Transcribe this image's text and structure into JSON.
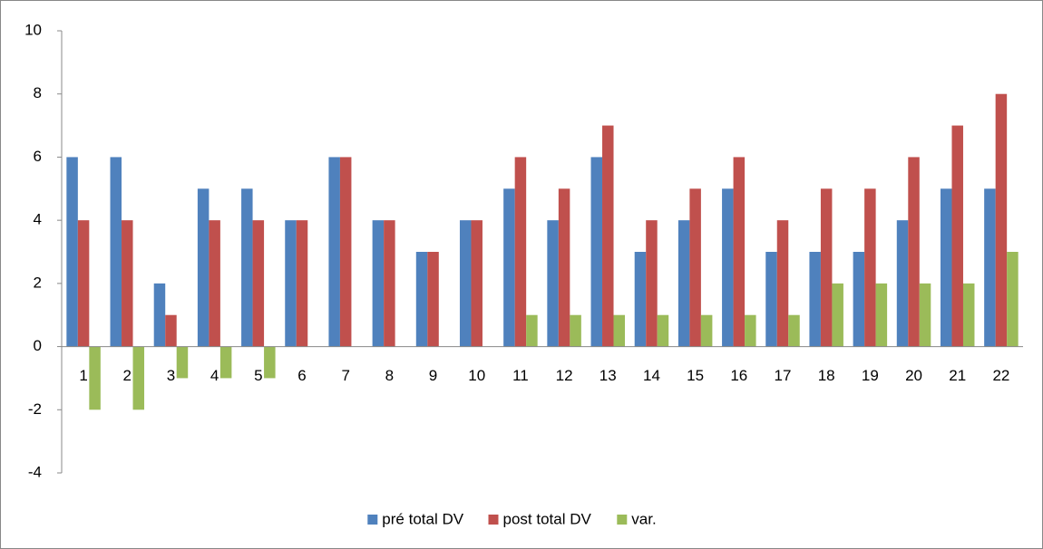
{
  "chart_data": {
    "type": "bar",
    "categories": [
      "1",
      "2",
      "3",
      "4",
      "5",
      "6",
      "7",
      "8",
      "9",
      "10",
      "11",
      "12",
      "13",
      "14",
      "15",
      "16",
      "17",
      "18",
      "19",
      "20",
      "21",
      "22"
    ],
    "series": [
      {
        "name": "pré total DV",
        "color": "#4f81bd",
        "values": [
          6,
          6,
          2,
          5,
          5,
          4,
          6,
          4,
          3,
          4,
          5,
          4,
          6,
          3,
          4,
          5,
          3,
          3,
          3,
          4,
          5,
          5
        ]
      },
      {
        "name": "post total DV",
        "color": "#c0504d",
        "values": [
          4,
          4,
          1,
          4,
          4,
          4,
          6,
          4,
          3,
          4,
          6,
          5,
          7,
          4,
          5,
          6,
          4,
          5,
          5,
          6,
          7,
          8
        ]
      },
      {
        "name": "var.",
        "color": "#9bbb59",
        "values": [
          -2,
          -2,
          -1,
          -1,
          -1,
          0,
          0,
          0,
          0,
          0,
          1,
          1,
          1,
          1,
          1,
          1,
          1,
          2,
          2,
          2,
          2,
          3
        ]
      }
    ],
    "ylim": [
      -4,
      10
    ],
    "yticks": [
      -4,
      -2,
      0,
      2,
      4,
      6,
      8,
      10
    ],
    "grid": false,
    "legend": "bottom"
  }
}
